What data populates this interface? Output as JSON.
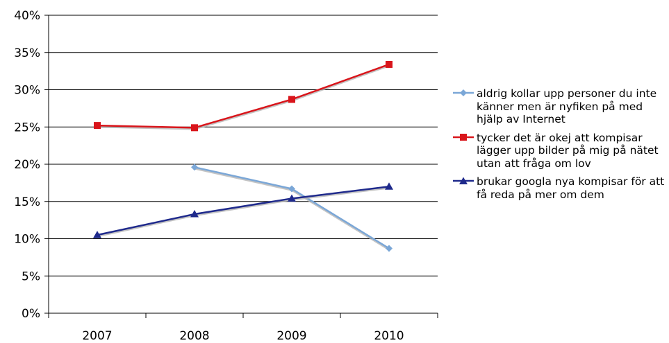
{
  "chart_data": {
    "type": "line",
    "categories": [
      "2007",
      "2008",
      "2009",
      "2010"
    ],
    "ylim": [
      0,
      40
    ],
    "ytick_labels": [
      "0%",
      "5%",
      "10%",
      "15%",
      "20%",
      "25%",
      "30%",
      "35%",
      "40%"
    ],
    "yticks": [
      0,
      5,
      10,
      15,
      20,
      25,
      30,
      35,
      40
    ],
    "grid": true,
    "legend_position": "right",
    "series": [
      {
        "name": "aldrig kollar upp personer du inte känner men är nyfiken på med hjälp av Internet",
        "color": "#7BA7D7",
        "marker": "diamond",
        "values": [
          null,
          19.6,
          16.7,
          8.7
        ]
      },
      {
        "name": "tycker det är okej att kompisar lägger upp bilder på mig på nätet utan att fråga om lov",
        "color": "#D9151B",
        "marker": "square",
        "values": [
          25.2,
          24.9,
          28.7,
          33.4
        ]
      },
      {
        "name": "brukar googla nya kompisar för att få reda på mer om dem",
        "color": "#1F2A8C",
        "marker": "triangle",
        "values": [
          10.5,
          13.3,
          15.4,
          17.0
        ]
      }
    ]
  }
}
